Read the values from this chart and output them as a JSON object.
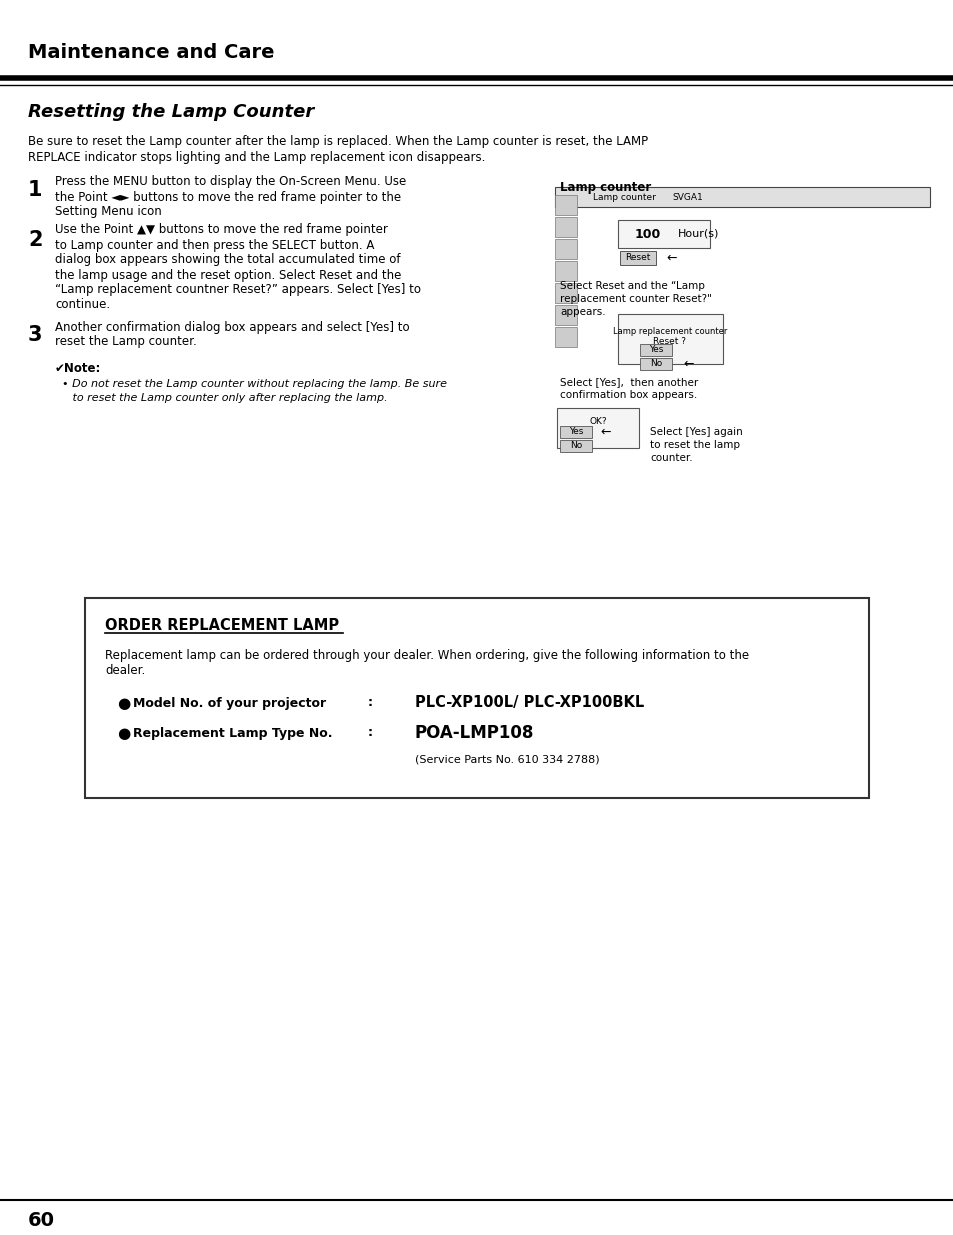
{
  "page_title": "Maintenance and Care",
  "section_title": "Resetting the Lamp Counter",
  "intro_lines": [
    "Be sure to reset the Lamp counter after the lamp is replaced. When the Lamp counter is reset, the LAMP",
    "REPLACE indicator stops lighting and the Lamp replacement icon disappears."
  ],
  "step1_num": "1",
  "step1_lines": [
    "Press the MENU button to display the On-Screen Menu. Use",
    "the Point ◄► buttons to move the red frame pointer to the",
    "Setting Menu icon"
  ],
  "step2_num": "2",
  "step2_lines": [
    "Use the Point ▲▼ buttons to move the red frame pointer",
    "to Lamp counter and then press the SELECT button. A",
    "dialog box appears showing the total accumulated time of",
    "the lamp usage and the reset option. Select Reset and the",
    "“Lamp replacement countner Reset?” appears. Select [Yes] to",
    "continue."
  ],
  "step3_num": "3",
  "step3_lines": [
    "Another confirmation dialog box appears and select [Yes] to",
    "reset the Lamp counter."
  ],
  "note_title": "✔Note:",
  "note_lines": [
    "• Do not reset the Lamp counter without replacing the lamp. Be sure",
    "   to reset the Lamp counter only after replacing the lamp."
  ],
  "lamp_counter_label": "Lamp counter",
  "order_box_title": "ORDER REPLACEMENT LAMP",
  "order_box_desc_lines": [
    "Replacement lamp can be ordered through your dealer. When ordering, give the following information to the",
    "dealer."
  ],
  "bullet1_label": "Model No. of your projector",
  "bullet1_colon": ":",
  "bullet1_value": "PLC-XP100L/ PLC-XP100BKL",
  "bullet2_label": "Replacement Lamp Type No.",
  "bullet2_colon": ":",
  "bullet2_value": "POA-LMP108",
  "service_parts": "(Service Parts No. 610 334 2788)",
  "page_number": "60",
  "bg_color": "#ffffff",
  "text_color": "#000000",
  "box_border": "#333333"
}
